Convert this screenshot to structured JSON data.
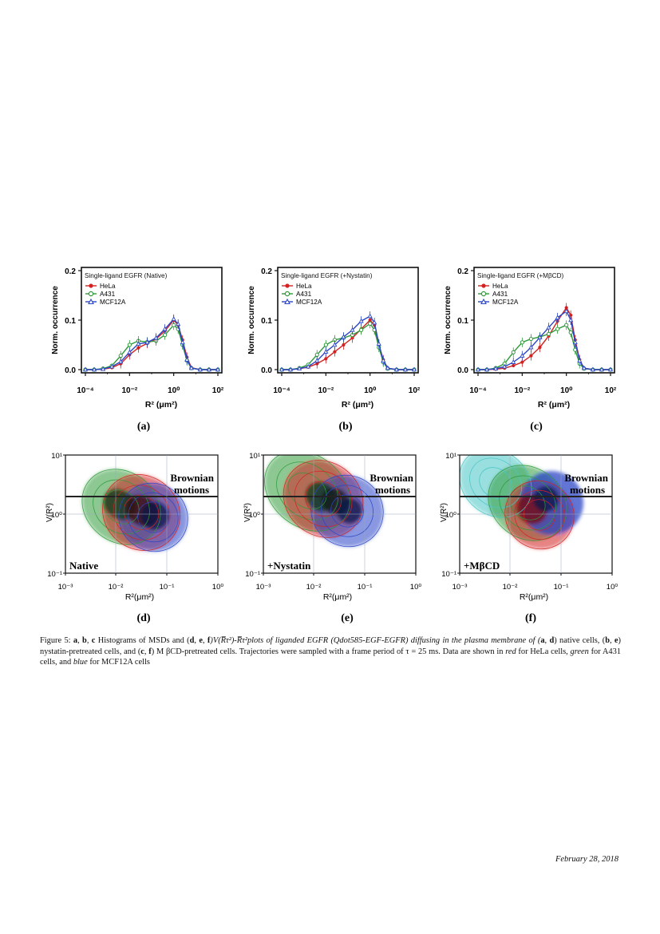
{
  "colors": {
    "hela": "#d42222",
    "a431": "#2f9a3a",
    "mcf": "#2b46c6",
    "axis": "#111111"
  },
  "histograms": [
    {
      "title": "Single-ligand EGFR (Native)",
      "label": "(a)"
    },
    {
      "title": "Single-ligand EGFR (+Nystatin)",
      "label": "(b)"
    },
    {
      "title": "Single-ligand EGFR (+MβCD)",
      "label": "(c)"
    }
  ],
  "histogram_axes": {
    "ylabel": "Norm. occurrence",
    "xlabel": "R² (μm²)",
    "yticks": [
      "0.0",
      "0.1",
      "0.2"
    ],
    "xticks": [
      "10⁻⁴",
      "10⁻²",
      "10⁰",
      "10²"
    ],
    "legend": [
      "HeLa",
      "A431",
      "MCF12A"
    ]
  },
  "contours": [
    {
      "annotation": "Native",
      "label": "(d)"
    },
    {
      "annotation": "+Nystatin",
      "label": "(e)"
    },
    {
      "annotation": "+MβCD",
      "label": "(f)"
    }
  ],
  "contour_axes": {
    "ylabel": "V(R²)",
    "xlabel": "R²(μm²)",
    "xticks": [
      "10⁻³",
      "10⁻²",
      "10⁻¹",
      "10⁰"
    ],
    "yticks": [
      "10¹",
      "10⁰",
      "10⁻¹"
    ],
    "brownian_line1": "Brownian",
    "brownian_line2": "motions"
  },
  "chart_data": [
    {
      "type": "line",
      "title": "Single-ligand EGFR (Native)",
      "xlabel": "R² (μm²)",
      "ylabel": "Norm. occurrence",
      "xscale": "log",
      "xlim": [
        -4.3,
        2
      ],
      "ylim": [
        0,
        0.2
      ],
      "x": [
        -4,
        -3.6,
        -3.2,
        -2.8,
        -2.4,
        -2,
        -1.6,
        -1.2,
        -0.8,
        -0.4,
        0,
        0.2,
        0.4,
        0.6,
        0.8,
        1.2,
        1.6,
        2
      ],
      "series": [
        {
          "name": "HeLa",
          "values": [
            0.0,
            0.0,
            0.001,
            0.004,
            0.012,
            0.03,
            0.044,
            0.053,
            0.062,
            0.078,
            0.1,
            0.09,
            0.06,
            0.025,
            0.004,
            0.0,
            0.0,
            0.0
          ]
        },
        {
          "name": "A431",
          "values": [
            0.0,
            0.0,
            0.002,
            0.008,
            0.028,
            0.05,
            0.058,
            0.056,
            0.058,
            0.07,
            0.09,
            0.082,
            0.05,
            0.018,
            0.003,
            0.0,
            0.0,
            0.0
          ]
        },
        {
          "name": "MCF12A",
          "values": [
            0.0,
            0.0,
            0.001,
            0.006,
            0.016,
            0.035,
            0.052,
            0.055,
            0.064,
            0.082,
            0.102,
            0.092,
            0.055,
            0.02,
            0.003,
            0.0,
            0.0,
            0.0
          ]
        }
      ]
    },
    {
      "type": "line",
      "title": "Single-ligand EGFR (+Nystatin)",
      "xlabel": "R² (μm²)",
      "ylabel": "Norm. occurrence",
      "xscale": "log",
      "xlim": [
        -4.3,
        2
      ],
      "ylim": [
        0,
        0.2
      ],
      "x": [
        -4,
        -3.6,
        -3.2,
        -2.8,
        -2.4,
        -2,
        -1.6,
        -1.2,
        -0.8,
        -0.4,
        0,
        0.2,
        0.4,
        0.6,
        0.8,
        1.2,
        1.6,
        2
      ],
      "series": [
        {
          "name": "HeLa",
          "values": [
            0.0,
            0.0,
            0.002,
            0.005,
            0.012,
            0.022,
            0.036,
            0.05,
            0.064,
            0.082,
            0.1,
            0.09,
            0.05,
            0.02,
            0.003,
            0.0,
            0.0,
            0.0
          ]
        },
        {
          "name": "A431",
          "values": [
            0.0,
            0.0,
            0.003,
            0.01,
            0.03,
            0.05,
            0.06,
            0.064,
            0.07,
            0.08,
            0.093,
            0.08,
            0.045,
            0.015,
            0.002,
            0.0,
            0.0,
            0.0
          ]
        },
        {
          "name": "MCF12A",
          "values": [
            0.0,
            0.0,
            0.002,
            0.006,
            0.018,
            0.036,
            0.05,
            0.066,
            0.08,
            0.098,
            0.108,
            0.095,
            0.052,
            0.018,
            0.003,
            0.0,
            0.0,
            0.0
          ]
        }
      ]
    },
    {
      "type": "line",
      "title": "Single-ligand EGFR (+MβCD)",
      "xlabel": "R² (μm²)",
      "ylabel": "Norm. occurrence",
      "xscale": "log",
      "xlim": [
        -4.3,
        2
      ],
      "ylim": [
        0,
        0.2
      ],
      "x": [
        -4,
        -3.6,
        -3.2,
        -2.8,
        -2.4,
        -2,
        -1.6,
        -1.2,
        -0.8,
        -0.4,
        0,
        0.2,
        0.4,
        0.6,
        0.8,
        1.2,
        1.6,
        2
      ],
      "series": [
        {
          "name": "HeLa",
          "values": [
            0.0,
            0.0,
            0.001,
            0.003,
            0.008,
            0.015,
            0.028,
            0.045,
            0.068,
            0.098,
            0.125,
            0.11,
            0.06,
            0.02,
            0.003,
            0.0,
            0.0,
            0.0
          ]
        },
        {
          "name": "A431",
          "values": [
            0.0,
            0.0,
            0.003,
            0.012,
            0.035,
            0.055,
            0.062,
            0.066,
            0.072,
            0.082,
            0.09,
            0.075,
            0.04,
            0.012,
            0.002,
            0.0,
            0.0,
            0.0
          ]
        },
        {
          "name": "MCF12A",
          "values": [
            0.0,
            0.0,
            0.002,
            0.006,
            0.015,
            0.028,
            0.045,
            0.065,
            0.085,
            0.105,
            0.118,
            0.1,
            0.055,
            0.018,
            0.003,
            0.0,
            0.0,
            0.0
          ]
        }
      ]
    }
  ],
  "caption": {
    "prefix": "Figure 5: ",
    "p1_bold": "a",
    "p1_sep1": ", ",
    "p1_bold2": "b",
    "p1_sep2": ", ",
    "p1_bold3": "c",
    "p1_text": " Histograms of MSDs and (",
    "p1_bold4": "d",
    "p1_sep3": ", ",
    "p1_bold5": "e",
    "p1_sep4": ", ",
    "p1_bold6": "f",
    "p1_text2": ")V(R̅τ²)-R̅τ²plots of liganded EGFR (Qdot585-EGF-EGFR) diffusing in the plasma membrane of (",
    "p2_bold1": "a",
    "p2_sep1": ", ",
    "p2_bold2": "d",
    "p2_text1": ") native cells, (",
    "p2_bold3": "b",
    "p2_sep2": ", ",
    "p2_bold4": "e",
    "p2_text2": ") nystatin-pretreated cells, and (",
    "p2_bold5": "c",
    "p2_sep3": ", ",
    "p2_bold6": "f",
    "p2_text3": ") M βCD-pretreated cells. Trajectories were sampled with a frame period of τ = 25 ms. Data are shown in ",
    "red": "red",
    "t1": " for HeLa cells, ",
    "green": "green",
    "t2": " for A431 cells, and ",
    "blue": "blue",
    "t3": " for MCF12A cells"
  },
  "footer": {
    "date": "February 28, 2018"
  }
}
